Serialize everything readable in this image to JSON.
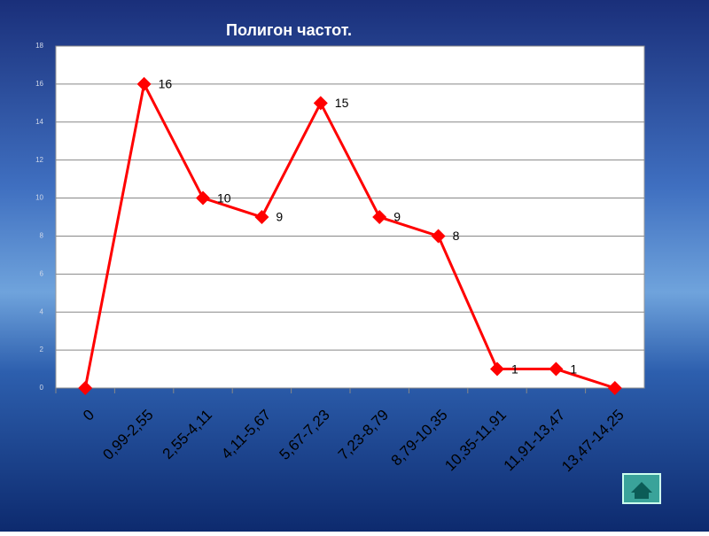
{
  "chart_data": {
    "type": "line",
    "title": "Полигон частот.",
    "categories": [
      "0",
      "0,99-2,55",
      "2,55-4,11",
      "4,11-5,67",
      "5,67-7,23",
      "7,23-8,79",
      "8,79-10,35",
      "10,35-11,91",
      "11,91-13,47",
      "13,47-14,25"
    ],
    "values": [
      0,
      16,
      10,
      9,
      15,
      9,
      8,
      1,
      1,
      0
    ],
    "value_labels": [
      null,
      "16",
      "10",
      "9",
      "15",
      "9",
      "8",
      "1",
      "1",
      null
    ],
    "color": "#ff0000",
    "ylim": [
      0,
      18
    ],
    "yticks": [
      0,
      2,
      4,
      6,
      8,
      10,
      12,
      14,
      16,
      18
    ],
    "grid": true
  }
}
